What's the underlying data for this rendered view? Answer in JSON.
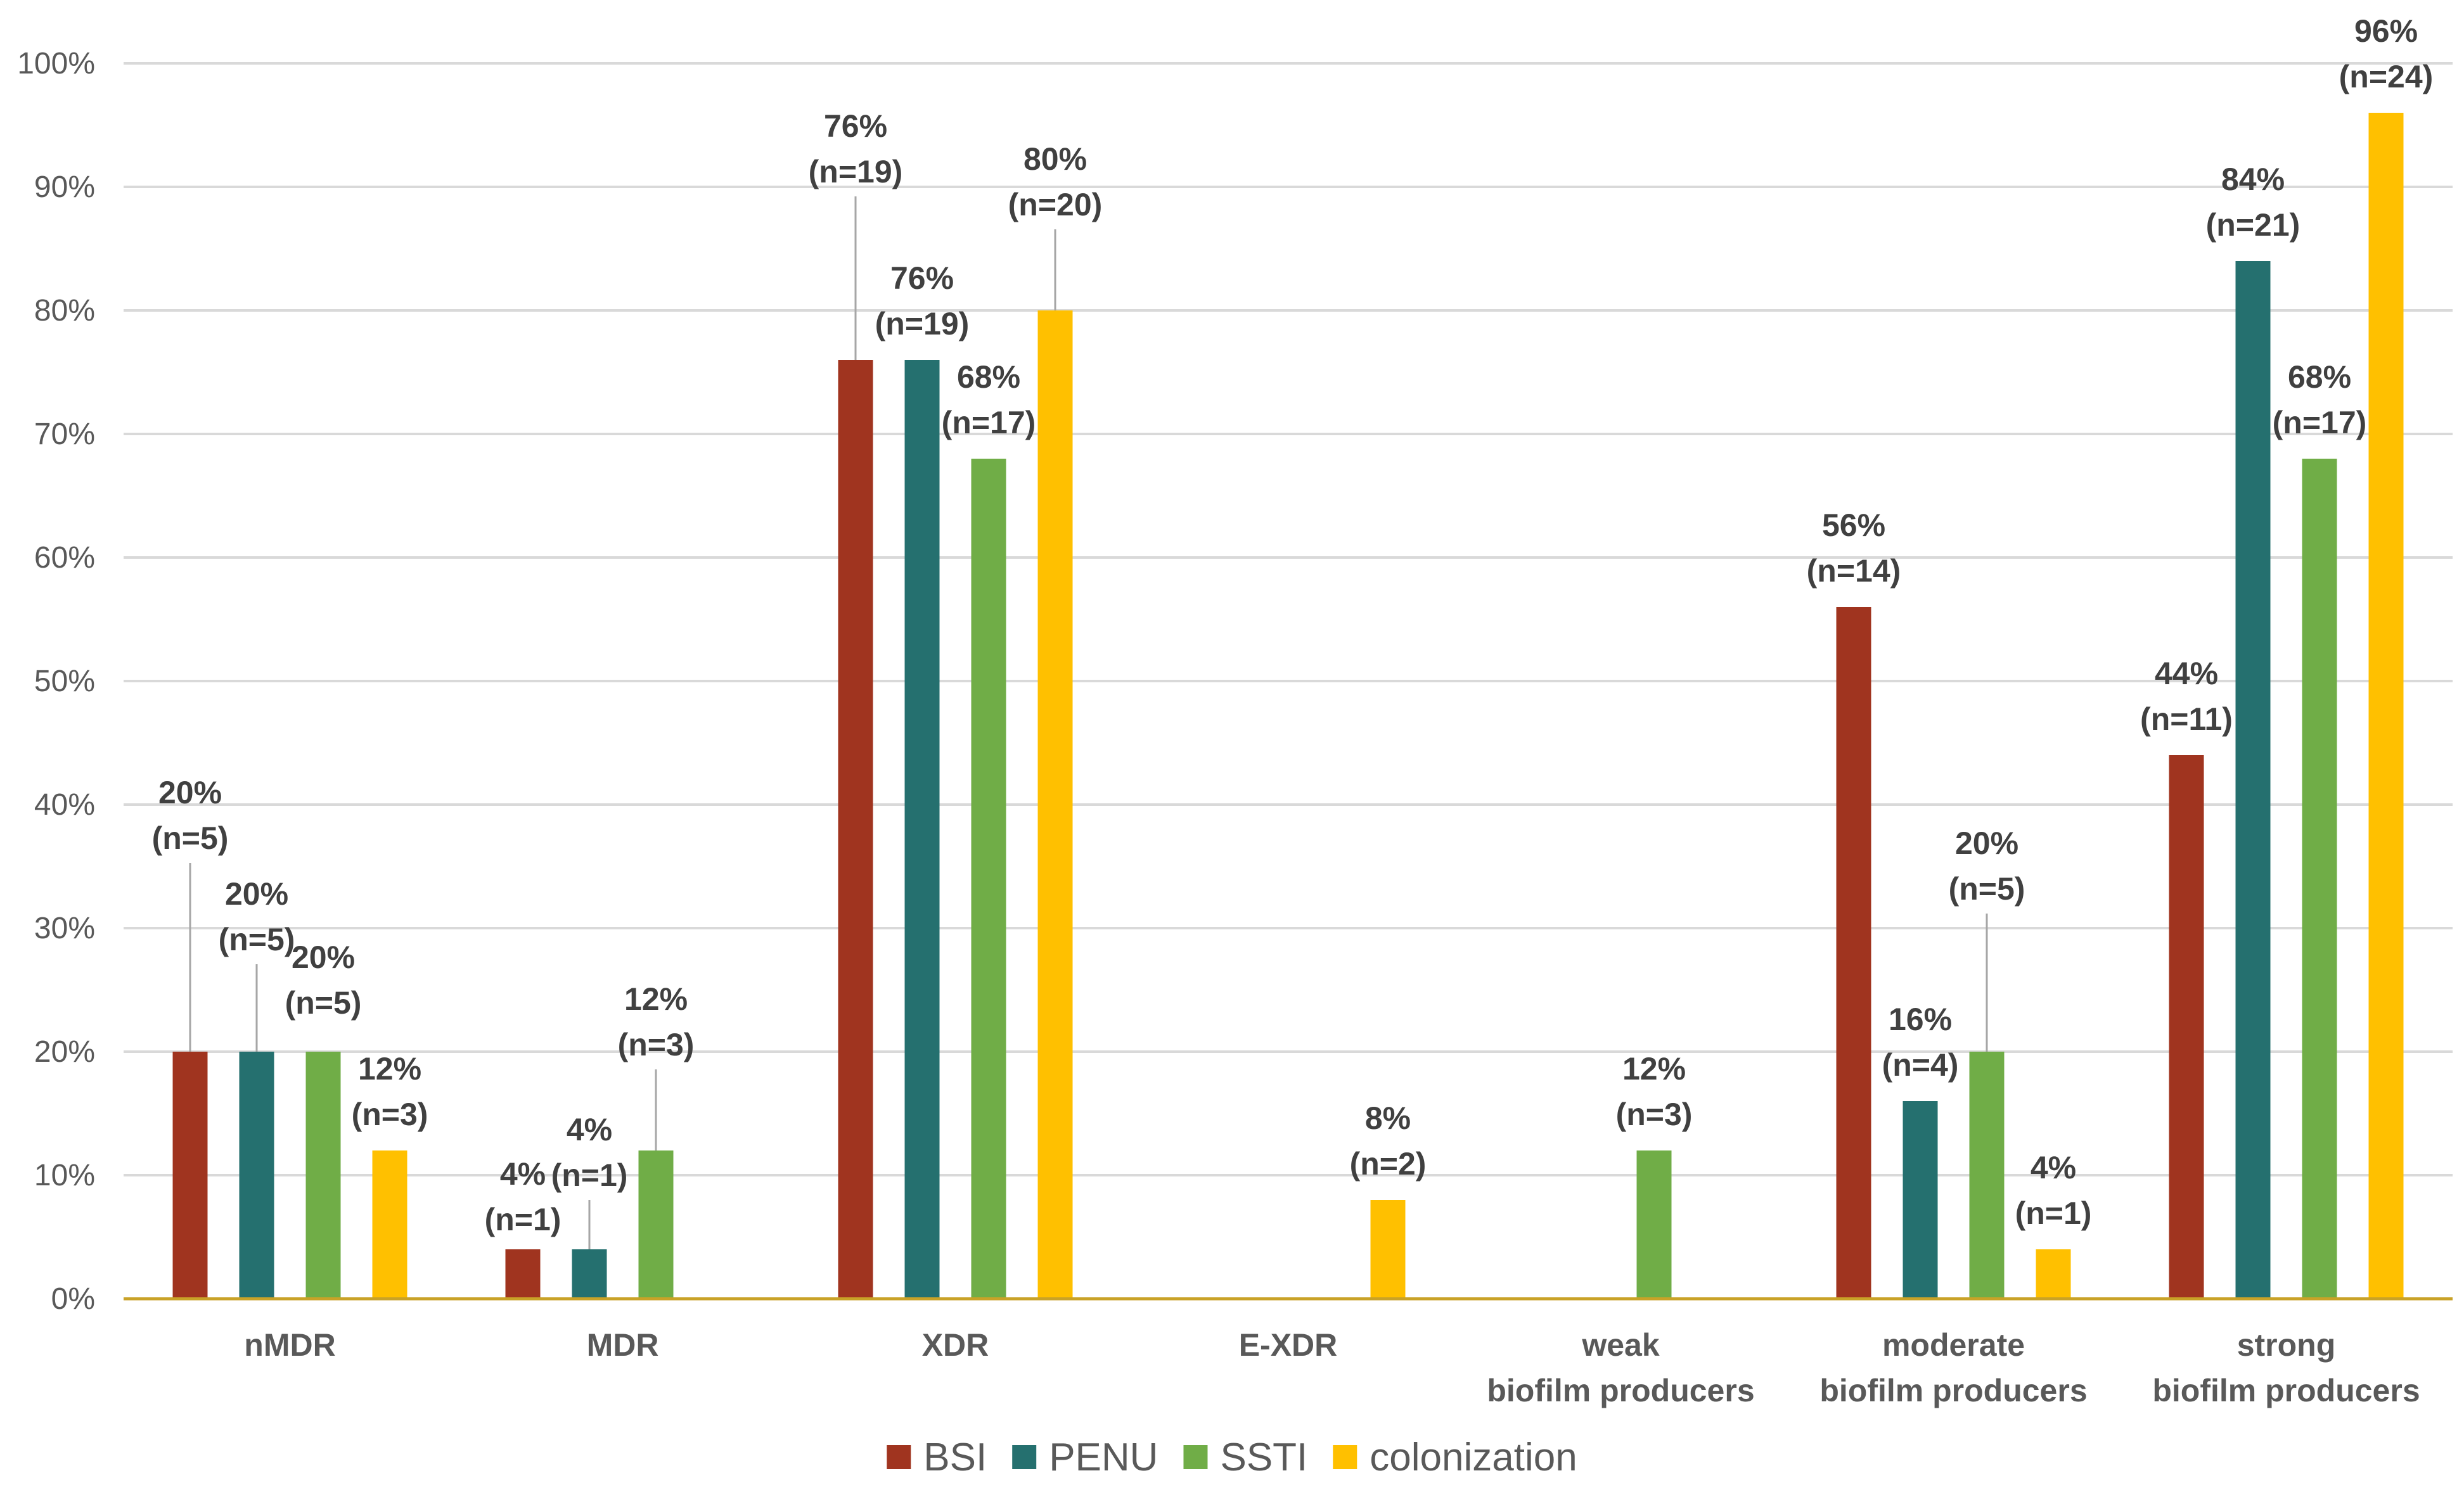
{
  "chart_data": {
    "type": "bar",
    "categories": [
      [
        "nMDR"
      ],
      [
        "MDR"
      ],
      [
        "XDR"
      ],
      [
        "E-XDR"
      ],
      [
        "weak",
        "biofilm producers"
      ],
      [
        "moderate",
        "biofilm producers"
      ],
      [
        "strong",
        "biofilm producers"
      ]
    ],
    "series": [
      {
        "name": "BSI",
        "color": "#a0341f",
        "values": [
          20,
          4,
          76,
          0,
          0,
          56,
          44
        ],
        "labels": [
          [
            "20%",
            "(n=5)"
          ],
          [
            "4%",
            "(n=1)"
          ],
          [
            "76%",
            "(n=19)"
          ],
          null,
          null,
          [
            "56%",
            "(n=14)"
          ],
          [
            "44%",
            "(n=11)"
          ]
        ]
      },
      {
        "name": "PENU",
        "color": "#25706f",
        "values": [
          20,
          4,
          76,
          0,
          0,
          16,
          84
        ],
        "labels": [
          [
            "20%",
            "(n=5)"
          ],
          [
            "4%",
            "(n=1)"
          ],
          [
            "76%",
            "(n=19)"
          ],
          null,
          null,
          [
            "16%",
            "(n=4)"
          ],
          [
            "84%",
            "(n=21)"
          ]
        ]
      },
      {
        "name": "SSTI",
        "color": "#70ad47",
        "values": [
          20,
          12,
          68,
          0,
          12,
          20,
          68
        ],
        "labels": [
          [
            "20%",
            "(n=5)"
          ],
          [
            "12%",
            "(n=3)"
          ],
          [
            "68%",
            "(n=17)"
          ],
          null,
          [
            "12%",
            "(n=3)"
          ],
          [
            "20%",
            "(n=5)"
          ],
          [
            "68%",
            "(n=17)"
          ]
        ]
      },
      {
        "name": "colonization",
        "color": "#ffc000",
        "values": [
          12,
          0,
          80,
          8,
          0,
          4,
          96
        ],
        "labels": [
          [
            "12%",
            "(n=3)"
          ],
          null,
          [
            "80%",
            "(n=20)"
          ],
          [
            "8%",
            "(n=2)"
          ],
          null,
          [
            "4%",
            "(n=1)"
          ],
          [
            "96%",
            "(n=24)"
          ]
        ]
      }
    ],
    "y_ticks": [
      "0%",
      "10%",
      "20%",
      "30%",
      "40%",
      "50%",
      "60%",
      "70%",
      "80%",
      "90%",
      "100%"
    ],
    "ylim": [
      0,
      100
    ],
    "grid": true,
    "legend_position": "bottom",
    "title": "",
    "xlabel": "",
    "ylabel": ""
  }
}
